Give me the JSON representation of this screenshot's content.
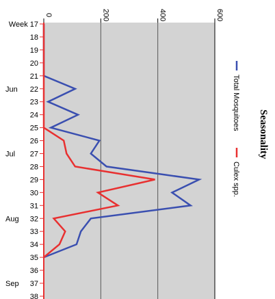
{
  "chart_data": {
    "type": "line",
    "orientation": "vertical-category-axis",
    "title": "Seasonality",
    "x_axis": {
      "categories": [
        "17",
        "18",
        "19",
        "20",
        "21",
        "22",
        "23",
        "24",
        "25",
        "26",
        "27",
        "28",
        "29",
        "30",
        "31",
        "32",
        "33",
        "34",
        "35",
        "36",
        "37",
        "38"
      ],
      "first_label_prefix": "Week",
      "month_labels": [
        {
          "label": "Jun",
          "at": "22"
        },
        {
          "label": "Jul",
          "at": "27"
        },
        {
          "label": "Aug",
          "at": "32"
        },
        {
          "label": "Sep",
          "at": "37"
        }
      ]
    },
    "y_axis": {
      "ylim": [
        0,
        600
      ],
      "ticks": [
        "0",
        "200",
        "400",
        "600"
      ],
      "grid": true
    },
    "series": [
      {
        "name": "Total Mosquitoes",
        "color": "#3a4fb0",
        "values": [
          0,
          0,
          0,
          0,
          0,
          110,
          15,
          120,
          25,
          195,
          165,
          220,
          545,
          450,
          515,
          165,
          130,
          115,
          0,
          null,
          null,
          null
        ]
      },
      {
        "name": "Culex spp.",
        "color": "#e83030",
        "values": [
          0,
          0,
          0,
          0,
          0,
          0,
          0,
          0,
          0,
          70,
          80,
          110,
          390,
          190,
          260,
          35,
          75,
          55,
          0,
          null,
          null,
          null
        ]
      }
    ],
    "legend": {
      "placement": "right",
      "entries": [
        "Total Mosquitoes",
        "Culex spp."
      ]
    },
    "colors": {
      "plot_background": "#d3d3d3",
      "gridline": "#555555",
      "axis": "#e83030"
    }
  }
}
